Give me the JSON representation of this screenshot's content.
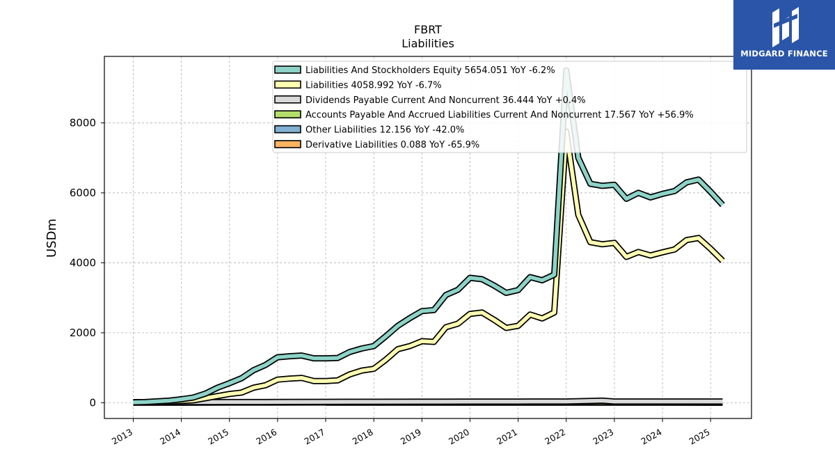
{
  "brand": {
    "name": "MIDGARD FINANCE",
    "color": "#2a55a8"
  },
  "chart_data": {
    "type": "area",
    "title": "FBRT",
    "subtitle": "Liabilities",
    "xlabel": "",
    "ylabel": "USDm",
    "ylim": [
      -450,
      9900
    ],
    "xlim": [
      2012.4,
      2025.85
    ],
    "grid": true,
    "legend_position": "top-right",
    "x_ticks": [
      "2013",
      "2014",
      "2015",
      "2016",
      "2017",
      "2018",
      "2019",
      "2020",
      "2021",
      "2022",
      "2023",
      "2024",
      "2025"
    ],
    "y_ticks": [
      "0",
      "2000",
      "4000",
      "6000",
      "8000"
    ],
    "series": [
      {
        "name": "Liabilities And Stockholders Equity",
        "legend": "Liabilities And Stockholders Equity  5654.051 YoY -6.2%",
        "color": "#8dd3c7",
        "x": [
          2013.0,
          2013.25,
          2013.5,
          2013.75,
          2014.0,
          2014.25,
          2014.5,
          2014.75,
          2015.0,
          2015.25,
          2015.5,
          2015.75,
          2016.0,
          2016.25,
          2016.5,
          2016.75,
          2017.0,
          2017.25,
          2017.5,
          2017.75,
          2018.0,
          2018.25,
          2018.5,
          2018.75,
          2019.0,
          2019.25,
          2019.5,
          2019.75,
          2020.0,
          2020.25,
          2020.5,
          2020.75,
          2021.0,
          2021.25,
          2021.5,
          2021.75,
          2022.0,
          2022.25,
          2022.5,
          2022.75,
          2023.0,
          2023.25,
          2023.5,
          2023.75,
          2024.0,
          2024.25,
          2024.5,
          2024.75,
          2025.0,
          2025.25
        ],
        "values": [
          10,
          20,
          40,
          60,
          100,
          150,
          260,
          430,
          560,
          700,
          930,
          1080,
          1300,
          1330,
          1350,
          1270,
          1270,
          1280,
          1450,
          1550,
          1620,
          1900,
          2200,
          2420,
          2620,
          2650,
          3080,
          3230,
          3570,
          3530,
          3350,
          3140,
          3220,
          3590,
          3500,
          3660,
          9500,
          7000,
          6260,
          6200,
          6230,
          5830,
          6000,
          5870,
          5970,
          6050,
          6300,
          6380,
          6030,
          5654
        ]
      },
      {
        "name": "Liabilities",
        "legend": "Liabilities  4058.992 YoY -6.7%",
        "color": "#ffffb3",
        "x": [
          2013.0,
          2013.25,
          2013.5,
          2013.75,
          2014.0,
          2014.25,
          2014.5,
          2014.75,
          2015.0,
          2015.25,
          2015.5,
          2015.75,
          2016.0,
          2016.25,
          2016.5,
          2016.75,
          2017.0,
          2017.25,
          2017.5,
          2017.75,
          2018.0,
          2018.25,
          2018.5,
          2018.75,
          2019.0,
          2019.25,
          2019.5,
          2019.75,
          2020.0,
          2020.25,
          2020.5,
          2020.75,
          2021.0,
          2021.25,
          2021.5,
          2021.75,
          2022.0,
          2022.25,
          2022.5,
          2022.75,
          2023.0,
          2023.25,
          2023.5,
          2023.75,
          2024.0,
          2024.25,
          2024.5,
          2024.75,
          2025.0,
          2025.25
        ],
        "values": [
          5,
          10,
          20,
          30,
          50,
          70,
          130,
          190,
          250,
          290,
          430,
          500,
          660,
          690,
          710,
          620,
          620,
          640,
          810,
          920,
          970,
          1230,
          1530,
          1620,
          1760,
          1740,
          2160,
          2260,
          2540,
          2580,
          2370,
          2140,
          2200,
          2520,
          2410,
          2580,
          7750,
          5370,
          4590,
          4530,
          4570,
          4170,
          4310,
          4210,
          4300,
          4380,
          4650,
          4710,
          4400,
          4059
        ]
      },
      {
        "name": "Dividends Payable Current And Noncurrent",
        "legend": "Dividends Payable Current And Noncurrent  36.444 YoY +0.4%",
        "color": "#d9d9d9",
        "x": [
          2013.0,
          2014.0,
          2015.0,
          2016.0,
          2017.0,
          2018.0,
          2019.0,
          2020.0,
          2021.0,
          2022.0,
          2022.75,
          2023.0,
          2024.0,
          2025.25
        ],
        "values": [
          15,
          18,
          20,
          22,
          25,
          28,
          30,
          32,
          34,
          36,
          60,
          36,
          36,
          36
        ]
      },
      {
        "name": "Accounts Payable And Accrued Liabilities Current And Noncurrent",
        "legend": "Accounts Payable And Accrued Liabilities Current And Noncurrent  17.567 YoY +56.9%",
        "color": "#b3de69",
        "x": [
          2013.0,
          2014.0,
          2015.0,
          2016.0,
          2016.5,
          2017.0,
          2018.0,
          2019.0,
          2020.0,
          2021.0,
          2022.0,
          2023.0,
          2024.0,
          2025.25
        ],
        "values": [
          5,
          5,
          8,
          10,
          12,
          10,
          10,
          10,
          12,
          15,
          20,
          15,
          12,
          18
        ]
      },
      {
        "name": "Other Liabilities",
        "legend": "Other Liabilities  12.156 YoY -42.0%",
        "color": "#80b1d3",
        "x": [
          2013.0,
          2014.0,
          2015.0,
          2016.0,
          2017.0,
          2018.0,
          2019.0,
          2020.0,
          2021.0,
          2022.0,
          2023.0,
          2024.0,
          2025.25
        ],
        "values": [
          3,
          3,
          5,
          5,
          8,
          10,
          12,
          15,
          15,
          18,
          15,
          15,
          12
        ]
      },
      {
        "name": "Derivative Liabilities",
        "legend": "Derivative Liabilities  0.088 YoY -65.9%",
        "color": "#fdb462",
        "x": [
          2017.0,
          2018.0,
          2019.0,
          2020.0,
          2021.0,
          2022.0,
          2023.0,
          2024.0,
          2025.25
        ],
        "values": [
          1,
          1,
          1,
          1,
          1,
          1,
          1,
          1,
          0.1
        ]
      }
    ]
  }
}
